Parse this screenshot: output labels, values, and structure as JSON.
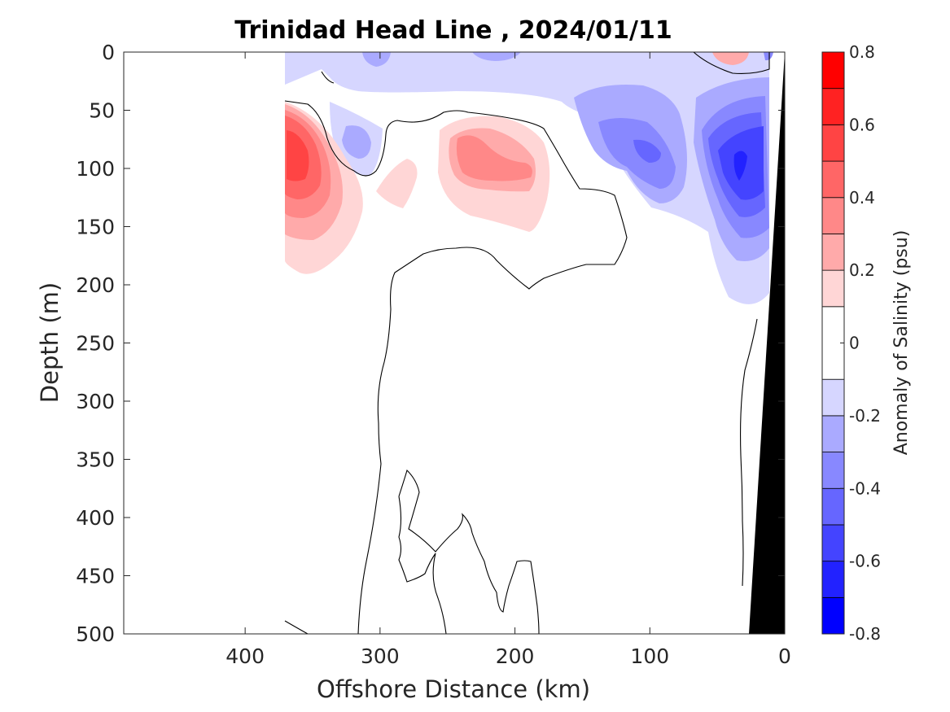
{
  "chart_data": {
    "type": "heatmap",
    "title": "Trinidad Head Line , 2024/01/11",
    "xlabel": "Offshore Distance (km)",
    "ylabel": "Depth (m)",
    "xlim": [
      490,
      0
    ],
    "ylim": [
      0,
      500
    ],
    "x_reversed": true,
    "y_reversed": true,
    "x_ticks": [
      400,
      300,
      200,
      100,
      0
    ],
    "y_ticks": [
      0,
      50,
      100,
      150,
      200,
      250,
      300,
      350,
      400,
      450,
      500
    ],
    "colorbar": {
      "label": "Anomaly of Salinity (psu)",
      "range": [
        -0.8,
        0.8
      ],
      "ticks": [
        0.8,
        0.6,
        0.4,
        0.2,
        0,
        -0.2,
        -0.4,
        -0.6,
        -0.8
      ],
      "levels": [
        -0.8,
        -0.7,
        -0.6,
        -0.5,
        -0.4,
        -0.3,
        -0.2,
        -0.1,
        0.1,
        0.2,
        0.3,
        0.4,
        0.5,
        0.6,
        0.7,
        0.8
      ],
      "colors": [
        "#0000ff",
        "#2222ff",
        "#4444ff",
        "#6666ff",
        "#8888ff",
        "#aaaaff",
        "#d6d6ff",
        "#ffffff",
        "#ffd6d6",
        "#ffaaaa",
        "#ff8888",
        "#ff6666",
        "#ff4444",
        "#ff2222",
        "#ff0000"
      ]
    },
    "data_extent_km": [
      370,
      0
    ],
    "contour_levels": [
      0
    ],
    "features": [
      {
        "sign": "positive",
        "level": 0.6,
        "center_km": 358,
        "center_depth_m": 95
      },
      {
        "sign": "positive",
        "level": 0.3,
        "center_km": 230,
        "center_depth_m": 100
      },
      {
        "sign": "positive",
        "level": 0.2,
        "center_km": 40,
        "center_depth_m": 5
      },
      {
        "sign": "negative",
        "level": -0.7,
        "center_km": 35,
        "center_depth_m": 100
      },
      {
        "sign": "negative",
        "level": -0.4,
        "center_km": 100,
        "center_depth_m": 85
      },
      {
        "sign": "negative",
        "level": -0.3,
        "center_km": 335,
        "center_depth_m": 75
      },
      {
        "sign": "negative",
        "level": -0.2,
        "center_km": 200,
        "center_depth_m": 25
      }
    ],
    "bathymetry_color": "#000000"
  }
}
